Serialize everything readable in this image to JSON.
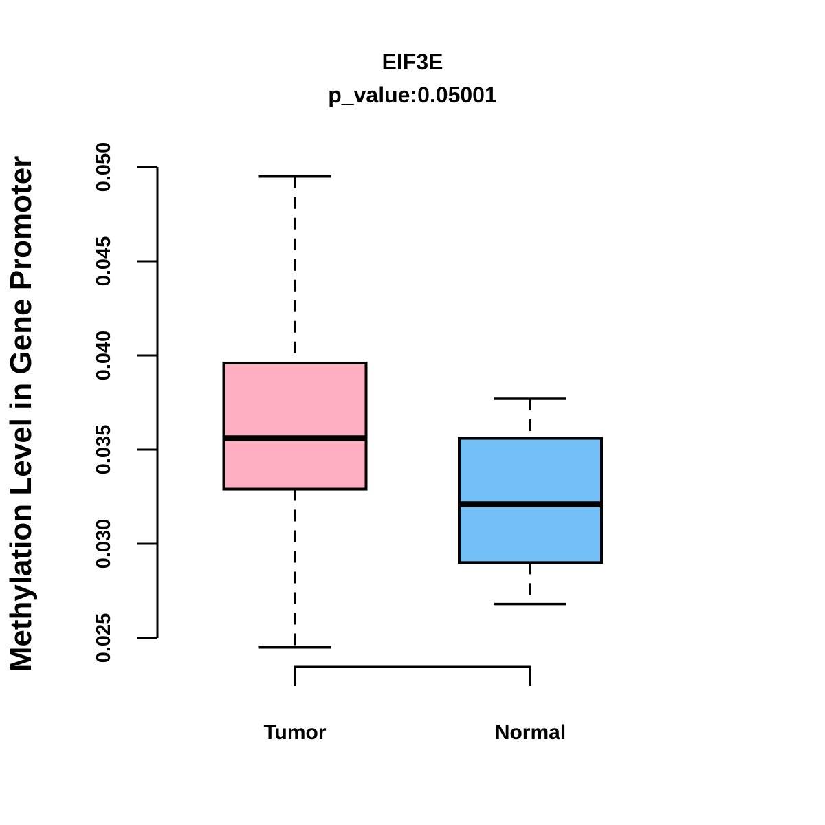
{
  "figure": {
    "background": "#ffffff",
    "line_color": "#000000"
  },
  "chart_data": {
    "type": "boxplot",
    "title": "EIF3E",
    "subtitle": "p_value:0.05001",
    "ylabel": "Methylation Level in Gene Promoter",
    "xlabel": "",
    "ylim": [
      0.025,
      0.05
    ],
    "yticks": [
      "0.025",
      "0.030",
      "0.035",
      "0.040",
      "0.045",
      "0.050"
    ],
    "grid": false,
    "legend": null,
    "groups": [
      {
        "label": "Tumor",
        "fill": "#FFAFC1",
        "whisker_low": 0.0245,
        "q1": 0.0329,
        "median": 0.0356,
        "q3": 0.0396,
        "whisker_high": 0.0495
      },
      {
        "label": "Normal",
        "fill": "#73BFF7",
        "whisker_low": 0.0268,
        "q1": 0.029,
        "median": 0.0321,
        "q3": 0.0356,
        "whisker_high": 0.0377
      }
    ]
  }
}
